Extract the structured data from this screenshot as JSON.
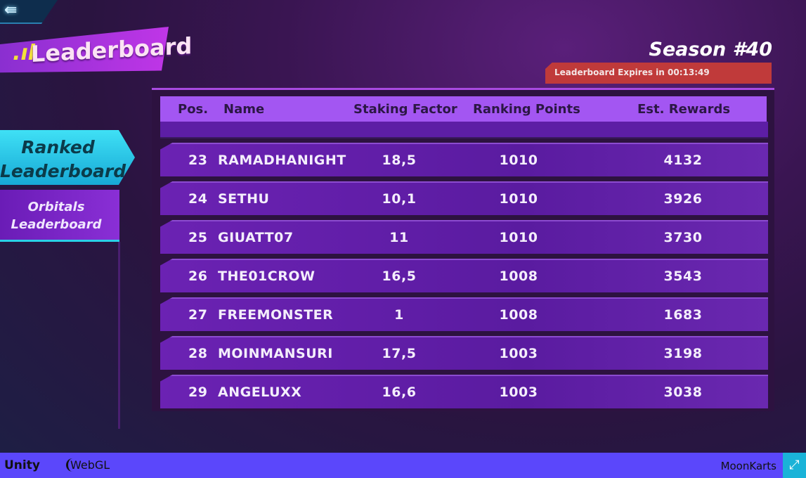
{
  "header": {
    "title": "Leaderboard",
    "season": "Season #40",
    "expires": "Leaderboard Expires in 00:13:49",
    "back_icon": "back-arrow-icon"
  },
  "nav": {
    "ranked": "Ranked Leaderboard",
    "orbitals": "Orbitals Leaderboard",
    "active": "ranked"
  },
  "table": {
    "columns": [
      "Pos.",
      "Name",
      "Staking Factor",
      "Ranking Points",
      "Est. Rewards"
    ],
    "rows": [
      {
        "pos": "23",
        "name": "RAMADHANIGHT",
        "staking": "18,5",
        "points": "1010",
        "rewards": "4132"
      },
      {
        "pos": "24",
        "name": "SETHU",
        "staking": "10,1",
        "points": "1010",
        "rewards": "3926"
      },
      {
        "pos": "25",
        "name": "GIUATT07",
        "staking": "11",
        "points": "1010",
        "rewards": "3730"
      },
      {
        "pos": "26",
        "name": "THE01CROW",
        "staking": "16,5",
        "points": "1008",
        "rewards": "3543"
      },
      {
        "pos": "27",
        "name": "FREEMONSTER",
        "staking": "1",
        "points": "1008",
        "rewards": "1683"
      },
      {
        "pos": "28",
        "name": "MOINMANSURI",
        "staking": "17,5",
        "points": "1003",
        "rewards": "3198"
      },
      {
        "pos": "29",
        "name": "ANGELUXX",
        "staking": "16,6",
        "points": "1003",
        "rewards": "3038"
      }
    ]
  },
  "footer": {
    "unity": "Unity",
    "webgl": "WebGL",
    "game": "MoonKarts",
    "fullscreen_icon": "fullscreen-icon"
  },
  "colors": {
    "footer": "#5b47fb",
    "header_row": "#a356f2",
    "expires": "#c03a3a",
    "active_nav": "#3fe0f5"
  }
}
